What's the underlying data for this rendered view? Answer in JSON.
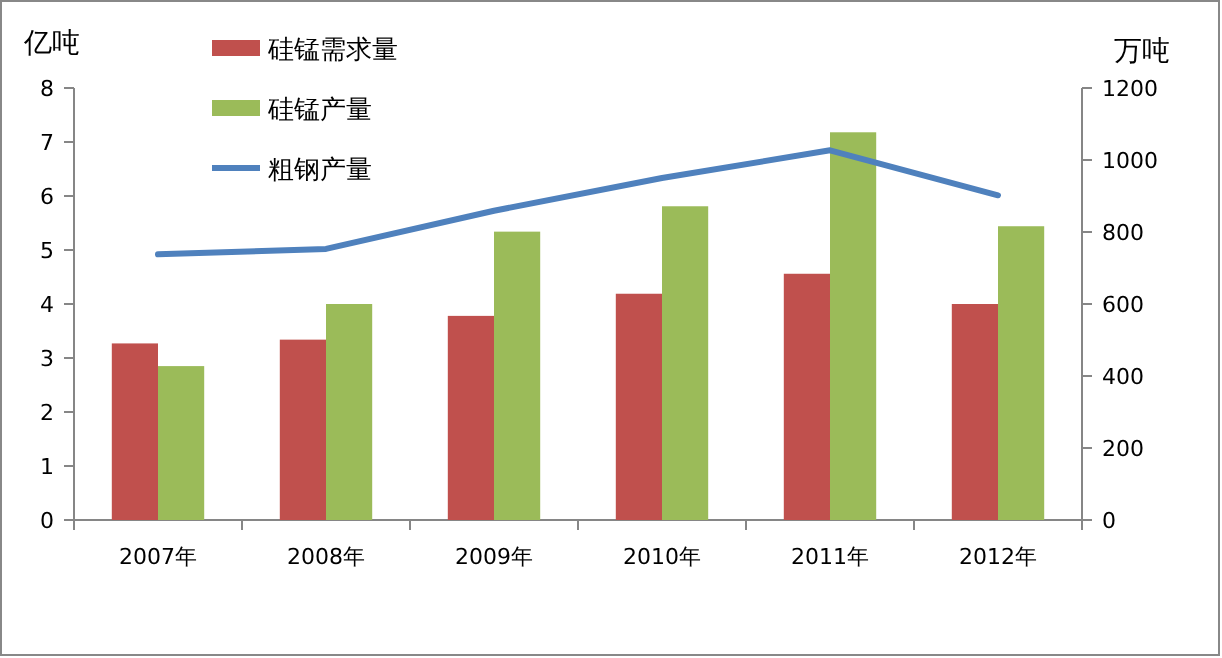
{
  "chart_data": {
    "type": "bar",
    "ylabel": "亿吨",
    "y2label": "万吨",
    "categories": [
      "2007年",
      "2008年",
      "2009年",
      "2010年",
      "2011年",
      "2012年"
    ],
    "series": [
      {
        "name": "硅锰需求量",
        "color": "#c0504d",
        "values": [
          3.27,
          3.34,
          3.78,
          4.19,
          4.56,
          4.0
        ]
      },
      {
        "name": "硅锰产量",
        "color": "#9bbb59",
        "values": [
          2.85,
          4.0,
          5.34,
          5.81,
          7.18,
          5.44
        ]
      },
      {
        "name": "粗钢产量",
        "type": "line",
        "axis": "y2",
        "color": "#4f81bd",
        "values": [
          738,
          753,
          859,
          950,
          1027,
          902
        ]
      }
    ],
    "ylim": [
      0,
      8
    ],
    "yticks": [
      0,
      1,
      2,
      3,
      4,
      5,
      6,
      7,
      8
    ],
    "y2lim": [
      0,
      1200
    ],
    "y2ticks": [
      0,
      200,
      400,
      600,
      800,
      1000,
      1200
    ],
    "legend": "top left",
    "grid": false
  }
}
